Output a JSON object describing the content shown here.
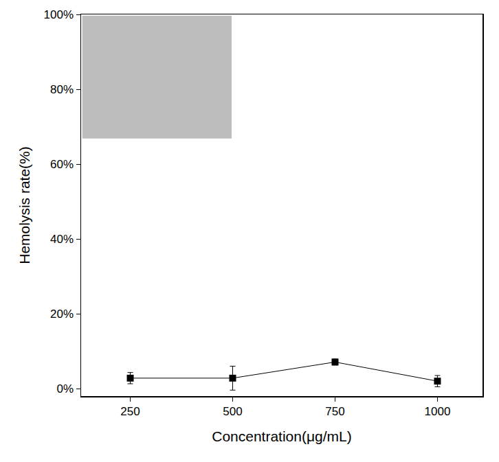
{
  "chart_data": {
    "type": "line",
    "x": [
      250,
      500,
      750,
      1000
    ],
    "values": [
      2.8,
      2.8,
      7.1,
      2.0
    ],
    "error": [
      1.5,
      3.2,
      0.8,
      1.5
    ],
    "color": "#000000",
    "marker": "square",
    "line_style": "solid",
    "x_label": "Concentration(μg/mL)",
    "y_label": "Hemolysis rate(%)",
    "xlim": [
      130,
      1110
    ],
    "ylim": [
      -2,
      100
    ],
    "xticks": [
      250,
      500,
      750,
      1000
    ],
    "yticks": [
      {
        "value": 0,
        "label": "0%"
      },
      {
        "value": 20,
        "label": "20%"
      },
      {
        "value": 40,
        "label": "40%"
      },
      {
        "value": 60,
        "label": "60%"
      },
      {
        "value": 80,
        "label": "80%"
      },
      {
        "value": 100,
        "label": "100%"
      }
    ],
    "grid": false
  }
}
